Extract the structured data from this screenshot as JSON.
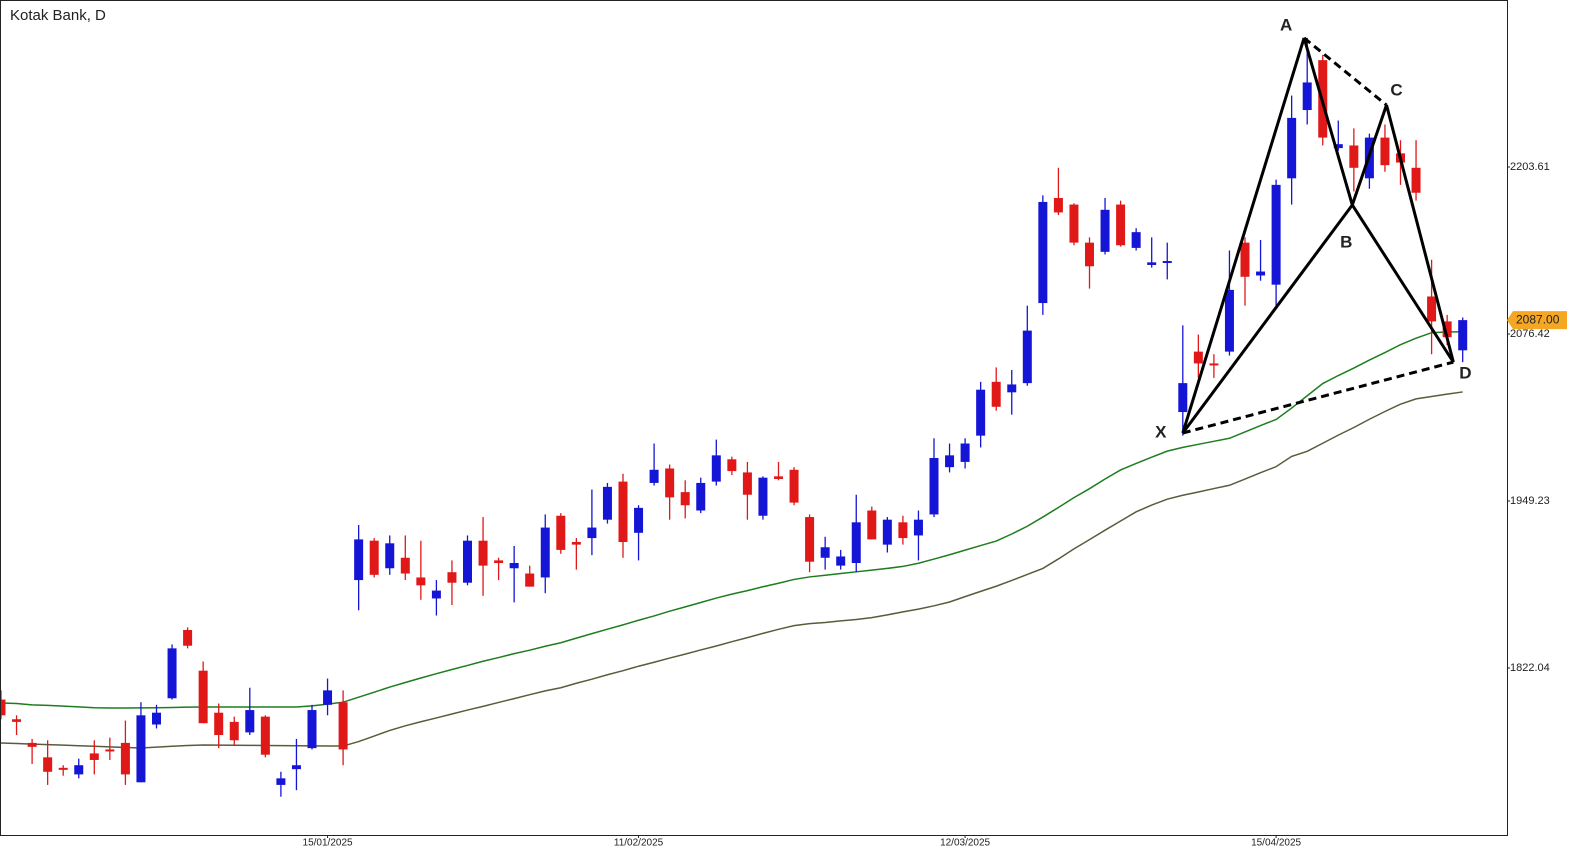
{
  "chart_data": {
    "type": "candlestick",
    "title": "Kotak Bank, D",
    "categories": [
      null,
      null,
      null,
      null,
      null,
      null,
      null,
      null,
      null,
      null,
      null,
      null,
      null,
      null,
      null,
      null,
      null,
      null,
      null,
      null,
      null,
      "15/01/2025",
      null,
      null,
      null,
      null,
      null,
      null,
      null,
      null,
      null,
      null,
      null,
      null,
      null,
      null,
      null,
      null,
      null,
      null,
      null,
      "11/02/2025",
      null,
      null,
      null,
      null,
      null,
      null,
      null,
      null,
      null,
      null,
      null,
      null,
      null,
      null,
      null,
      null,
      null,
      null,
      null,
      null,
      "12/03/2025",
      null,
      null,
      null,
      null,
      null,
      null,
      null,
      null,
      null,
      null,
      null,
      null,
      null,
      null,
      null,
      null,
      null,
      null,
      null,
      "15/04/2025",
      null,
      null,
      null,
      null,
      null,
      null,
      null,
      null,
      null,
      null,
      null,
      null
    ],
    "open": [
      1798,
      1783,
      1765,
      1754,
      1746,
      1741,
      1757,
      1760,
      1765,
      1735,
      1779,
      1799,
      1851,
      1820,
      1788,
      1781,
      1773,
      1785,
      1733,
      1745,
      1761,
      1794,
      1796,
      1889,
      1919,
      1898,
      1906,
      1891,
      1875,
      1895,
      1887,
      1919,
      1904,
      1898,
      1894,
      1891,
      1938,
      1918,
      1921,
      1935,
      1964,
      1925,
      1963,
      1974,
      1956,
      1942,
      1964,
      1981,
      1971,
      1938,
      1968,
      1973,
      1937,
      1906,
      1900,
      1902,
      1942,
      1916,
      1933,
      1923,
      1939,
      1975,
      1979,
      1999,
      2040,
      2032,
      2039,
      2100,
      2180,
      2175,
      2146,
      2139,
      2175,
      2142,
      2129,
      2131,
      2017,
      2063,
      2054,
      2063,
      2146,
      2121,
      2114,
      2195,
      2247,
      2285,
      2218,
      2220,
      2195,
      2226,
      2214,
      2203,
      2105,
      2086,
      2064
    ],
    "high": [
      1805,
      1786,
      1768,
      1767,
      1748,
      1753,
      1767,
      1769,
      1782,
      1796,
      1794,
      1840,
      1853,
      1827,
      1795,
      1785,
      1807,
      1786,
      1743,
      1768,
      1794,
      1814,
      1805,
      1931,
      1921,
      1923,
      1923,
      1919,
      1889,
      1904,
      1923,
      1937,
      1906,
      1915,
      1900,
      1939,
      1940,
      1921,
      1958,
      1963,
      1970,
      1946,
      1993,
      1977,
      1965,
      1967,
      1996,
      1983,
      1979,
      1968,
      1979,
      1975,
      1939,
      1922,
      1912,
      1954,
      1945,
      1937,
      1938,
      1942,
      1997,
      1993,
      1997,
      2040,
      2051,
      2049,
      2098,
      2182,
      2203,
      2176,
      2150,
      2180,
      2178,
      2157,
      2150,
      2146,
      2083,
      2076,
      2061,
      2140,
      2150,
      2148,
      2194,
      2258,
      2302,
      2289,
      2239,
      2233,
      2229,
      2236,
      2224,
      2224,
      2133,
      2091,
      2089
    ],
    "low": [
      1783,
      1771,
      1749,
      1733,
      1740,
      1738,
      1741,
      1752,
      1733,
      1735,
      1776,
      1798,
      1837,
      1780,
      1761,
      1763,
      1771,
      1754,
      1724,
      1729,
      1760,
      1786,
      1748,
      1866,
      1891,
      1893,
      1889,
      1874,
      1862,
      1870,
      1885,
      1877,
      1889,
      1872,
      1884,
      1879,
      1909,
      1897,
      1908,
      1932,
      1906,
      1904,
      1961,
      1935,
      1936,
      1940,
      1961,
      1969,
      1935,
      1935,
      1965,
      1946,
      1895,
      1897,
      1897,
      1895,
      1920,
      1910,
      1916,
      1904,
      1937,
      1971,
      1974,
      1990,
      2018,
      2015,
      2037,
      2091,
      2167,
      2144,
      2111,
      2137,
      2143,
      2140,
      2127,
      2118,
      1999,
      2043,
      2043,
      2060,
      2098,
      2117,
      2098,
      2175,
      2236,
      2220,
      2216,
      2185,
      2187,
      2200,
      2190,
      2178,
      2061,
      2068,
      2055
    ],
    "close": [
      1786,
      1781,
      1762,
      1743,
      1745,
      1748,
      1752,
      1759,
      1741,
      1786,
      1788,
      1837,
      1839,
      1780,
      1771,
      1767,
      1790,
      1756,
      1738,
      1748,
      1790,
      1805,
      1760,
      1920,
      1893,
      1917,
      1894,
      1885,
      1881,
      1887,
      1919,
      1900,
      1902,
      1902,
      1884,
      1929,
      1912,
      1916,
      1929,
      1960,
      1918,
      1944,
      1973,
      1952,
      1946,
      1963,
      1984,
      1972,
      1954,
      1967,
      1966,
      1948,
      1903,
      1914,
      1907,
      1933,
      1920,
      1935,
      1921,
      1935,
      1982,
      1984,
      1993,
      2034,
      2021,
      2038,
      2079,
      2177,
      2169,
      2146,
      2128,
      2171,
      2144,
      2154,
      2131,
      2132,
      2039,
      2054,
      2053,
      2110,
      2120,
      2124,
      2190,
      2241,
      2268,
      2226,
      2221,
      2203,
      2226,
      2205,
      2207,
      2184,
      2086,
      2074,
      2087
    ],
    "up_color": "#1515d6",
    "down_color": "#e01818",
    "overlays": [
      {
        "color": "#1e7d1e",
        "values": [
          1795.4,
          1795,
          1794,
          1793.6,
          1793,
          1792.4,
          1791.8,
          1791.6,
          1791.6,
          1791.7,
          1791.8,
          1792,
          1792.2,
          1792.3,
          1792.3,
          1792.3,
          1792.3,
          1792.3,
          1792.3,
          1792.3,
          1793.2,
          1794.5,
          1796,
          1799.8,
          1803.6,
          1807.5,
          1811,
          1814.4,
          1817.7,
          1820.9,
          1824,
          1827.2,
          1830,
          1833,
          1835.6,
          1838.6,
          1841.3,
          1844.8,
          1848.2,
          1851.6,
          1854.9,
          1858.4,
          1861.7,
          1865.3,
          1868.6,
          1871.9,
          1875.3,
          1878.3,
          1881,
          1883.9,
          1886.6,
          1889.5,
          1891.4,
          1892.7,
          1894,
          1895.3,
          1896.6,
          1897.9,
          1899.4,
          1901.8,
          1905,
          1908.3,
          1911.8,
          1915.3,
          1918.7,
          1924.1,
          1930,
          1937,
          1944.3,
          1951.8,
          1958.6,
          1966,
          1972.9,
          1977.8,
          1982.6,
          1987.2,
          1990.1,
          1992.4,
          1994.7,
          1997,
          2001.8,
          2006.7,
          2011.3,
          2020,
          2029.4,
          2038.7,
          2044.8,
          2050.5,
          2056.6,
          2062.3,
          2068.3,
          2073.2,
          2077.4,
          2078,
          2078
        ]
      },
      {
        "color": "#5b5b3c",
        "values": [
          1764.9,
          1764.5,
          1764.1,
          1763.7,
          1763.3,
          1762.8,
          1762.4,
          1762,
          1761.5,
          1761.1,
          1761.8,
          1762.4,
          1763,
          1763.4,
          1763.3,
          1763.2,
          1763.1,
          1763,
          1762.9,
          1762.8,
          1762.7,
          1762.6,
          1762.6,
          1766,
          1770.2,
          1774.5,
          1778,
          1781.1,
          1784,
          1787,
          1790,
          1792.8,
          1795.8,
          1798.7,
          1801.7,
          1804.6,
          1807,
          1810.4,
          1813.5,
          1816.9,
          1820,
          1823.4,
          1826.4,
          1829.6,
          1832.6,
          1835.8,
          1838.8,
          1842.1,
          1845.2,
          1848.4,
          1851.5,
          1854.3,
          1855.8,
          1856.7,
          1857.9,
          1859,
          1860.4,
          1862.5,
          1864.8,
          1866.9,
          1869.4,
          1872.3,
          1876.4,
          1880.4,
          1884.3,
          1888.7,
          1893.3,
          1897.9,
          1905.1,
          1912.8,
          1919.8,
          1927,
          1934,
          1941,
          1946.1,
          1950.6,
          1953.6,
          1956.1,
          1958.7,
          1961.2,
          1965.9,
          1970.8,
          1975.4,
          1983.2,
          1987.1,
          1993.2,
          1999.4,
          2005.2,
          2011.5,
          2017.4,
          2023,
          2027,
          2028.8,
          2030.6,
          2032.3
        ]
      }
    ],
    "pattern": [
      {
        "label": "X",
        "x": 76,
        "price": 2001
      },
      {
        "label": "A",
        "x": 83.8,
        "price": 2301.9
      },
      {
        "label": "B",
        "x": 86.9,
        "price": 2174.7
      },
      {
        "label": "C",
        "x": 89.1,
        "price": 2250.8
      },
      {
        "label": "D",
        "x": 93.4,
        "price": 2055
      }
    ],
    "last_price": {
      "value": 2087,
      "label": "2087.00",
      "color": "#f5a623"
    },
    "ylim": [
      1694.85,
      2330.04
    ],
    "yticks": [
      1822.04,
      1949.23,
      2076.42,
      2203.61
    ]
  }
}
